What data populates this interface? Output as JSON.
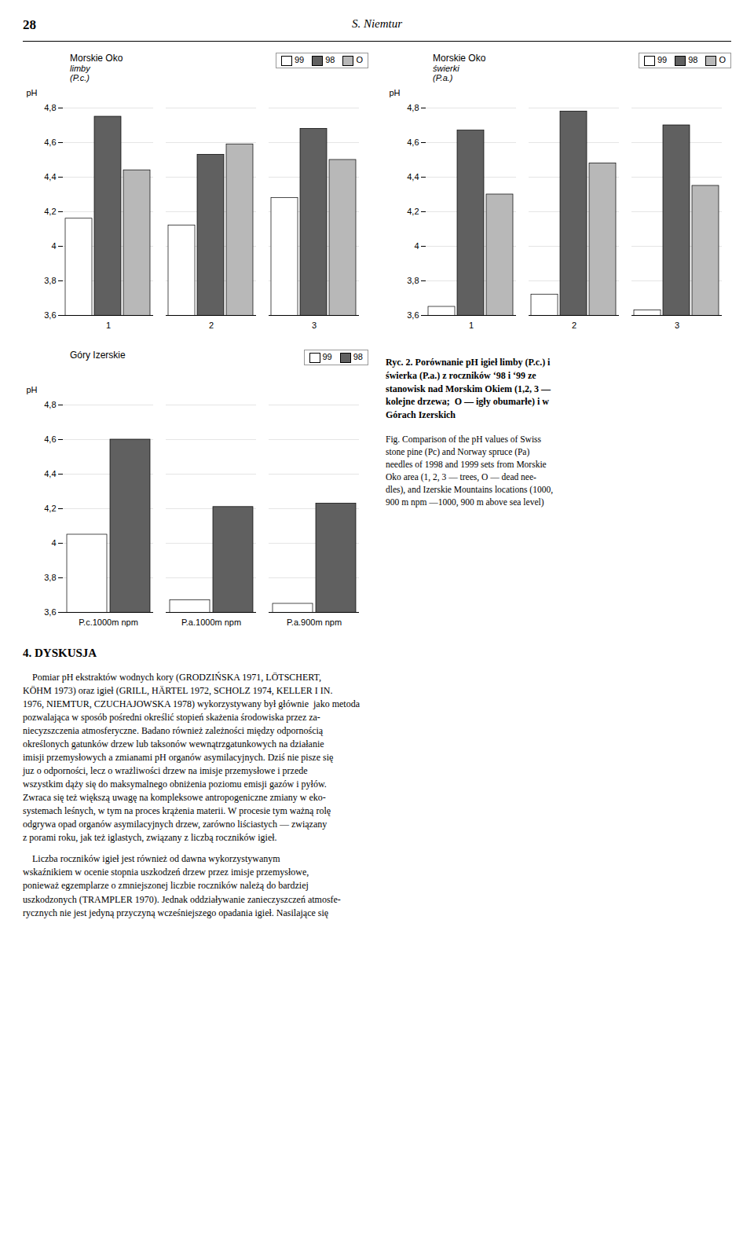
{
  "page_number": "28",
  "author": "S. Niemtur",
  "chart_data": [
    {
      "type": "bar",
      "title": "Morskie Oko",
      "subtitle": "limby\n(P.c.)",
      "ylabel": "pH",
      "categories": [
        "1",
        "2",
        "3"
      ],
      "series": [
        {
          "name": "99",
          "color": "#ffffff",
          "values": [
            4.16,
            4.12,
            4.28
          ]
        },
        {
          "name": "98",
          "color": "#606060",
          "values": [
            4.75,
            4.53,
            4.68
          ]
        },
        {
          "name": "O",
          "color": "#b8b8b8",
          "values": [
            4.44,
            4.59,
            4.5
          ]
        }
      ],
      "ylim": [
        3.6,
        4.8
      ],
      "yticks": [
        {
          "value": 3.6,
          "label": "3,6"
        },
        {
          "value": 3.8,
          "label": "3,8"
        },
        4,
        {
          "value": 4.2,
          "label": "4,2"
        },
        {
          "value": 4.4,
          "label": "4,4"
        },
        {
          "value": 4.6,
          "label": "4,6"
        },
        {
          "value": 4.8,
          "label": "4,8"
        }
      ],
      "grid": true,
      "legend": "upper right"
    },
    {
      "type": "bar",
      "title": "Morskie Oko",
      "subtitle": "świerki\n(P.a.)",
      "ylabel": "pH",
      "categories": [
        "1",
        "2",
        "3"
      ],
      "series": [
        {
          "name": "99",
          "color": "#ffffff",
          "values": [
            3.65,
            3.72,
            3.63
          ]
        },
        {
          "name": "98",
          "color": "#606060",
          "values": [
            4.67,
            4.78,
            4.7
          ]
        },
        {
          "name": "O",
          "color": "#b8b8b8",
          "values": [
            4.3,
            4.48,
            4.35
          ]
        }
      ],
      "ylim": [
        3.6,
        4.8
      ],
      "yticks": [
        {
          "value": 3.6,
          "label": "3,6"
        },
        {
          "value": 3.8,
          "label": "3,8"
        },
        4,
        {
          "value": 4.2,
          "label": "4,2"
        },
        {
          "value": 4.4,
          "label": "4,4"
        },
        {
          "value": 4.6,
          "label": "4,6"
        },
        {
          "value": 4.8,
          "label": "4,8"
        }
      ],
      "grid": true,
      "legend": "upper right"
    },
    {
      "type": "bar",
      "title": "Góry Izerskie",
      "ylabel": "pH",
      "categories": [
        "P.c.1000m npm",
        "P.a.1000m npm",
        "P.a.900m npm"
      ],
      "series": [
        {
          "name": "99",
          "color": "#ffffff",
          "values": [
            4.05,
            3.67,
            3.65
          ]
        },
        {
          "name": "98",
          "color": "#606060",
          "values": [
            4.6,
            4.21,
            4.23
          ]
        }
      ],
      "ylim": [
        3.6,
        4.8
      ],
      "yticks": [
        {
          "value": 3.6,
          "label": "3,6"
        },
        {
          "value": 3.8,
          "label": "3,8"
        },
        4,
        {
          "value": 4.2,
          "label": "4,2"
        },
        {
          "value": 4.4,
          "label": "4,4"
        },
        {
          "value": 4.6,
          "label": "4,6"
        },
        {
          "value": 4.8,
          "label": "4,8"
        }
      ],
      "grid": true,
      "legend": "upper right"
    }
  ],
  "caption_bold": "Ryc. 2. Porównanie pH igieł limby (P.c.) i\nświerka (P.a.) z roczników ‘98 i ‘99 ze\nstanowisk nad Morskim Okiem (1,2, 3 —\nkolejne drzewa;  O — igły obumarłe) i w\nGórach Izerskich",
  "caption": "Fig. Comparison of the pH values of Swiss\nstone pine (Pc) and Norway spruce (Pa)\nneedles of 1998 and 1999 sets from Morskie\nOko area (1, 2, 3 — trees, O ― dead nee-\ndles), and Izerskie Mountains locations (1000,\n900 m npm —1000, 900 m above sea level)",
  "section": "4. DYSKUSJA",
  "body": [
    "    Pomiar pH ekstraktów wodnych kory (GRODZIŃSKA 1971, LÖTSCHERT,\nKÖHM 1973) oraz igieł (GRILL, HÄRTEL 1972, SCHOLZ 1974, KELLER I IN.\n1976, NIEMTUR, CZUCHAJOWSKA 1978) wykorzystywany był głównie  jako metoda\npozwalająca w sposób pośredni określić stopień skażenia środowiska przez za-\nniecyzszczenia atmosferyczne. Badano również zależności między odpornością\nokreślonych gatunków drzew lub taksonów wewnątrzgatunkowych na działanie\nimisji przemysłowych a zmianami pH organów asymilacyjnych. Dziś nie pisze się\njuz o odporności, lecz o wrażliwości drzew na imisje przemysłowe i przede\nwszystkim dąży się do maksymalnego obniżenia poziomu emisji gazów i pyłów.\nZwraca się też większą uwagę na kompleksowe antropogeniczne zmiany w eko-\nsystemach leśnych, w tym na proces krążenia materii. W procesie tym ważną rolę\nodgrywa opad organów asymilacyjnych drzew, zarówno liściastych — związany\nz porami roku, jak też iglastych, związany z liczbą roczników igieł.",
    "    Liczba roczników igieł jest również od dawna wykorzystywanym\nwskaźnikiem w ocenie stopnia uszkodzeń drzew przez imisje przemysłowe,\nponieważ egzemplarze o zmniejszonej liczbie roczników należą do bardziej\nuszkodzonych (TRAMPLER 1970). Jednak oddziaływanie zanieczyszczeń atmosfe-\nrycznych nie jest jedyną przyczyną wcześniejszego opadania igieł. Nasilające się"
  ]
}
